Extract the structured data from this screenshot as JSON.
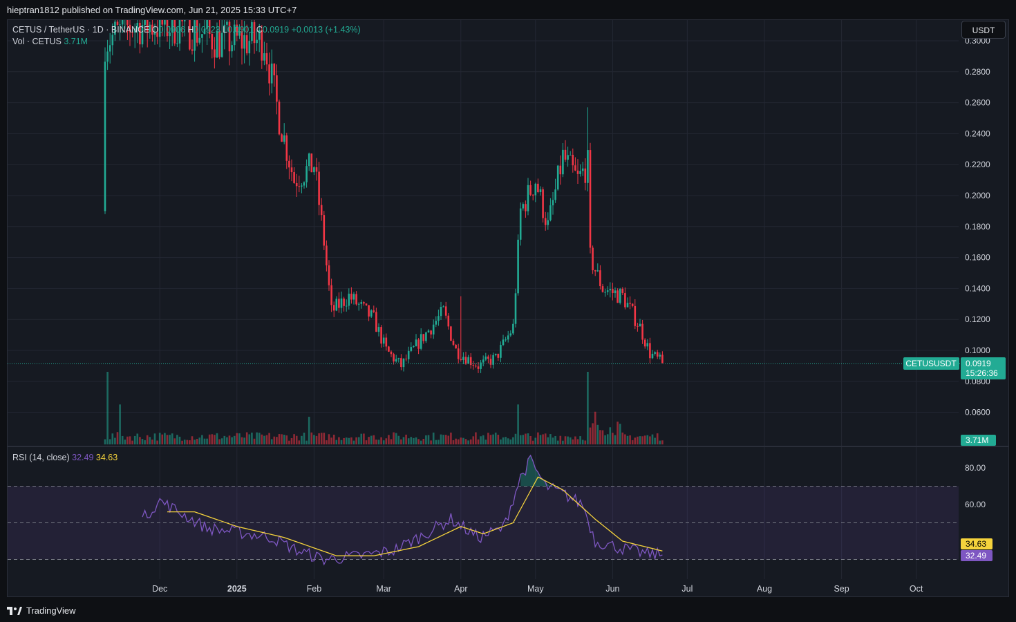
{
  "header": {
    "published": "hieptran1812 published on TradingView.com, Jun 21, 2025 15:33 UTC+7"
  },
  "legend": {
    "symbol": "CETUS / TetherUS · 1D · BINANCE",
    "o_label": "O",
    "o_value": "0.0906",
    "h_label": "H",
    "h_value": "0.0923",
    "l_label": "L",
    "l_value": "0.0901",
    "c_label": "C",
    "c_value": "0.0919",
    "change": "+0.0013 (+1.43%)",
    "vol_label": "Vol · CETUS",
    "vol_value": "3.71M",
    "rsi_label": "RSI (14, close)",
    "rsi_value": "32.49",
    "rsi_ma_value": "34.63"
  },
  "currency_button": "USDT",
  "price_tag": {
    "symbol": "CETUSUSDT",
    "price": "0.0919",
    "countdown": "15:26:36"
  },
  "vol_tag": "3.71M",
  "rsi_tags": {
    "ma": "34.63",
    "rsi": "32.49"
  },
  "footer": {
    "brand": "TradingView"
  },
  "colors": {
    "up": "#22ab94",
    "down": "#f23645",
    "rsi": "#7e57c2",
    "rsi_ma": "#f5d33c",
    "background": "#161a22",
    "grid": "#232733"
  },
  "chart_data": [
    {
      "type": "candlestick",
      "title": "CETUS / TetherUS · 1D · BINANCE",
      "y_ticks": [
        "0.0600",
        "0.0800",
        "0.1000",
        "0.1200",
        "0.1400",
        "0.1600",
        "0.1800",
        "0.2000",
        "0.2200",
        "0.2400",
        "0.2600",
        "0.2800",
        "0.3000"
      ],
      "x_ticks": [
        "Dec",
        "2025",
        "Feb",
        "Mar",
        "Apr",
        "May",
        "Jun",
        "Jul",
        "Aug",
        "Sep",
        "Oct"
      ],
      "ylim": [
        0.05,
        0.31
      ],
      "last_price": 0.0919,
      "x_start": "2024-11-09",
      "x_end": "2025-06-21",
      "close_anchors": [
        [
          "2024-11-09",
          0.3
        ],
        [
          "2024-11-20",
          0.31
        ],
        [
          "2024-12-10",
          0.31
        ],
        [
          "2024-12-25",
          0.3
        ],
        [
          "2025-01-05",
          0.3
        ],
        [
          "2025-01-12",
          0.3
        ],
        [
          "2025-01-18",
          0.25
        ],
        [
          "2025-01-24",
          0.21
        ],
        [
          "2025-02-01",
          0.22
        ],
        [
          "2025-02-05",
          0.17
        ],
        [
          "2025-02-08",
          0.125
        ],
        [
          "2025-02-15",
          0.135
        ],
        [
          "2025-02-25",
          0.12
        ],
        [
          "2025-03-02",
          0.1
        ],
        [
          "2025-03-08",
          0.09
        ],
        [
          "2025-03-15",
          0.105
        ],
        [
          "2025-03-25",
          0.125
        ],
        [
          "2025-03-30",
          0.1
        ],
        [
          "2025-04-08",
          0.09
        ],
        [
          "2025-04-15",
          0.095
        ],
        [
          "2025-04-22",
          0.115
        ],
        [
          "2025-04-25",
          0.19
        ],
        [
          "2025-05-01",
          0.21
        ],
        [
          "2025-05-06",
          0.18
        ],
        [
          "2025-05-12",
          0.225
        ],
        [
          "2025-05-18",
          0.21
        ],
        [
          "2025-05-22",
          0.22
        ],
        [
          "2025-05-23",
          0.16
        ],
        [
          "2025-05-28",
          0.14
        ],
        [
          "2025-06-05",
          0.135
        ],
        [
          "2025-06-12",
          0.115
        ],
        [
          "2025-06-16",
          0.098
        ],
        [
          "2025-06-21",
          0.0919
        ]
      ]
    },
    {
      "type": "bar",
      "title": "Vol · CETUS",
      "last_value": "3.71M",
      "spikes": [
        [
          "2024-11-10",
          1.0
        ],
        [
          "2024-11-15",
          0.55
        ],
        [
          "2025-05-22",
          1.0
        ],
        [
          "2025-05-25",
          0.45
        ],
        [
          "2025-04-24",
          0.55
        ],
        [
          "2025-01-30",
          0.38
        ]
      ]
    },
    {
      "type": "line",
      "title": "RSI (14, close)",
      "y_ticks": [
        "60.00",
        "80.00"
      ],
      "ylim": [
        20,
        88
      ],
      "bands": [
        30,
        50,
        70
      ],
      "series": [
        {
          "name": "RSI",
          "anchors": [
            [
              "2024-11-24",
              52
            ],
            [
              "2024-12-01",
              62
            ],
            [
              "2024-12-10",
              55
            ],
            [
              "2024-12-20",
              47
            ],
            [
              "2025-01-01",
              45
            ],
            [
              "2025-01-15",
              42
            ],
            [
              "2025-01-25",
              35
            ],
            [
              "2025-02-05",
              30
            ],
            [
              "2025-02-20",
              32
            ],
            [
              "2025-03-05",
              35
            ],
            [
              "2025-03-15",
              42
            ],
            [
              "2025-03-28",
              52
            ],
            [
              "2025-04-08",
              42
            ],
            [
              "2025-04-18",
              47
            ],
            [
              "2025-04-25",
              75
            ],
            [
              "2025-04-29",
              84
            ],
            [
              "2025-05-05",
              70
            ],
            [
              "2025-05-12",
              66
            ],
            [
              "2025-05-20",
              60
            ],
            [
              "2025-05-25",
              40
            ],
            [
              "2025-06-05",
              36
            ],
            [
              "2025-06-15",
              33
            ],
            [
              "2025-06-21",
              32.49
            ]
          ]
        },
        {
          "name": "RSI-based MA",
          "anchors": [
            [
              "2024-12-04",
              56
            ],
            [
              "2024-12-15",
              56
            ],
            [
              "2025-01-01",
              48
            ],
            [
              "2025-01-20",
              42
            ],
            [
              "2025-02-10",
              32
            ],
            [
              "2025-02-25",
              32
            ],
            [
              "2025-03-15",
              37
            ],
            [
              "2025-04-01",
              48
            ],
            [
              "2025-04-10",
              44
            ],
            [
              "2025-04-22",
              50
            ],
            [
              "2025-05-02",
              75
            ],
            [
              "2025-05-12",
              68
            ],
            [
              "2025-05-25",
              52
            ],
            [
              "2025-06-05",
              40
            ],
            [
              "2025-06-21",
              34.63
            ]
          ]
        }
      ]
    }
  ]
}
